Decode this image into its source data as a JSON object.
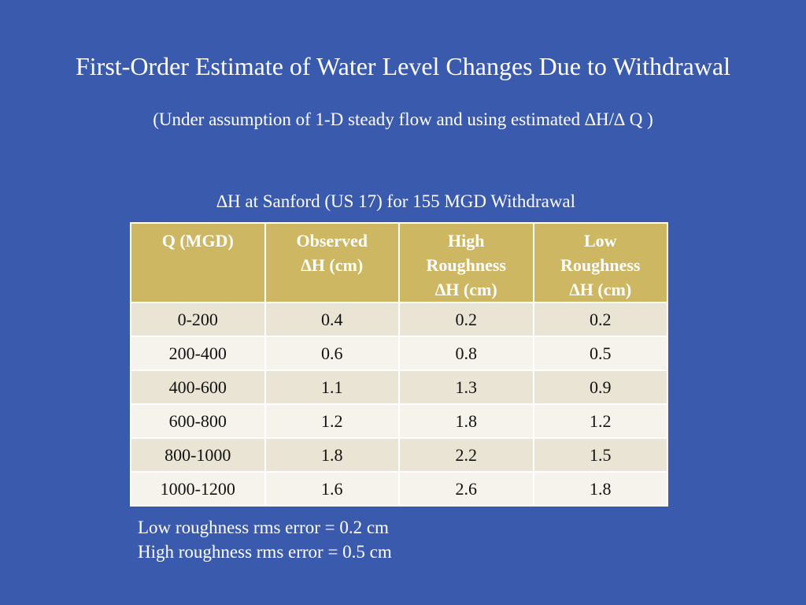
{
  "slide": {
    "title": "First-Order Estimate of Water Level Changes Due to Withdrawal",
    "subtitle": "(Under assumption of 1-D steady flow and using estimated ∆H/∆ Q )"
  },
  "table": {
    "caption": "∆H at Sanford (US 17) for 155 MGD Withdrawal",
    "headers": [
      [
        "Q (MGD)"
      ],
      [
        "Observed",
        "∆H (cm)"
      ],
      [
        "High",
        "Roughness",
        "∆H (cm)"
      ],
      [
        "Low",
        "Roughness",
        "∆H (cm)"
      ]
    ],
    "rows": [
      [
        "0-200",
        "0.4",
        "0.2",
        "0.2"
      ],
      [
        "200-400",
        "0.6",
        "0.8",
        "0.5"
      ],
      [
        "400-600",
        "1.1",
        "1.3",
        "0.9"
      ],
      [
        "600-800",
        "1.2",
        "1.8",
        "1.2"
      ],
      [
        "800-1000",
        "1.8",
        "2.2",
        "1.5"
      ],
      [
        "1000-1200",
        "1.6",
        "2.6",
        "1.8"
      ]
    ]
  },
  "notes": [
    "Low roughness rms error = 0.2 cm",
    "High roughness rms error = 0.5 cm"
  ],
  "colors": {
    "background": "#3a5aad",
    "header_fill": "#cdb763",
    "row_odd": "#e9e4d3",
    "row_even": "#f5f3ec"
  }
}
